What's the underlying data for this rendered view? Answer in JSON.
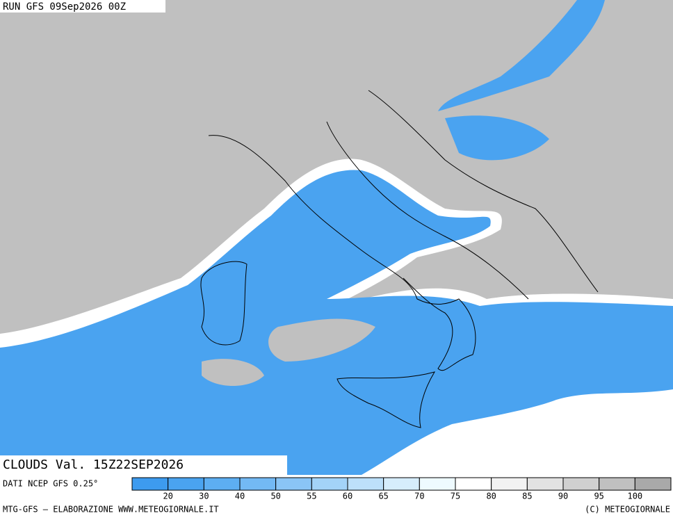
{
  "header": {
    "run": "RUN GFS 09Sep2026 00Z"
  },
  "map": {
    "field": "CLOUDS Val. 15Z22SEP2026",
    "source": "DATI NCEP GFS 0.25°"
  },
  "legend": {
    "levels": [
      20,
      30,
      40,
      50,
      55,
      60,
      65,
      70,
      75,
      80,
      85,
      90,
      95,
      100
    ],
    "colors": [
      "#3d9bef",
      "#4aa3f0",
      "#5daef2",
      "#73b9f4",
      "#8ac5f6",
      "#a3d3f8",
      "#bde0fa",
      "#d6edfc",
      "#eefaff",
      "#ffffff",
      "#f2f2f2",
      "#e2e2e2",
      "#d0d0d0",
      "#c0c0c0",
      "#a9a9a9"
    ]
  },
  "footer": {
    "left": "MTG-GFS — ELABORAZIONE WWW.METEOGIORNALE.IT",
    "right": "(C) METEOGIORNALE"
  }
}
